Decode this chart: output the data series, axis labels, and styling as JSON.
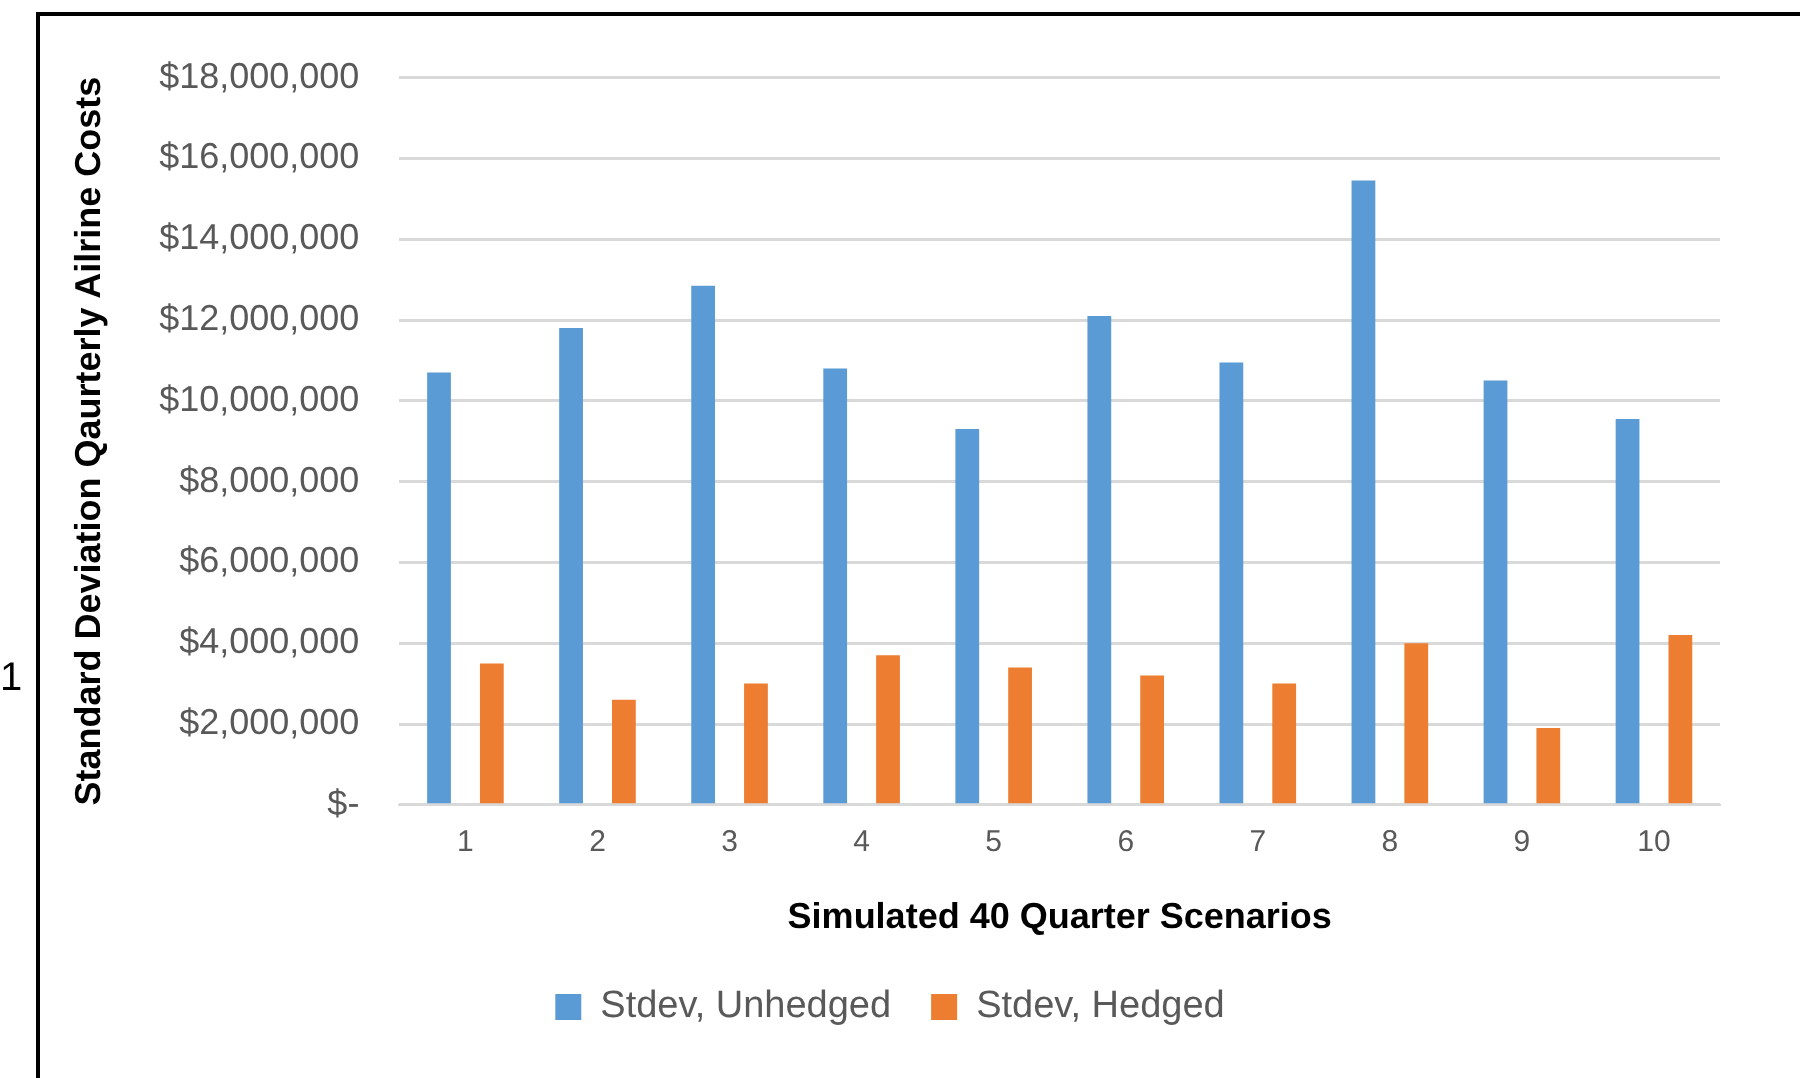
{
  "chart_data": {
    "type": "bar",
    "xlabel": "Simulated 40 Quarter Scenarios",
    "ylabel": "Standard Deviation Qaurterly Ailrine Costs",
    "categories": [
      "1",
      "2",
      "3",
      "4",
      "5",
      "6",
      "7",
      "8",
      "9",
      "10"
    ],
    "series": [
      {
        "name": "Stdev, Unhedged",
        "color": "#5b9bd5",
        "values": [
          10700000,
          11800000,
          12850000,
          10800000,
          9300000,
          12100000,
          10950000,
          15450000,
          10500000,
          9550000
        ]
      },
      {
        "name": "Stdev, Hedged",
        "color": "#ed7d31",
        "values": [
          3500000,
          2600000,
          3000000,
          3700000,
          3400000,
          3200000,
          3000000,
          4000000,
          1900000,
          4200000
        ]
      }
    ],
    "ylim": [
      0,
      18000000
    ],
    "yticks": [
      {
        "value": 0,
        "label": "$-"
      },
      {
        "value": 2000000,
        "label": "$2,000,000"
      },
      {
        "value": 4000000,
        "label": "$4,000,000"
      },
      {
        "value": 6000000,
        "label": "$6,000,000"
      },
      {
        "value": 8000000,
        "label": "$8,000,000"
      },
      {
        "value": 10000000,
        "label": "$10,000,000"
      },
      {
        "value": 12000000,
        "label": "$12,000,000"
      },
      {
        "value": 14000000,
        "label": "$14,000,000"
      },
      {
        "value": 16000000,
        "label": "$16,000,000"
      },
      {
        "value": 18000000,
        "label": "$18,000,000"
      }
    ],
    "grid": "y",
    "legend": "bottom",
    "annotations": [
      "1"
    ]
  }
}
